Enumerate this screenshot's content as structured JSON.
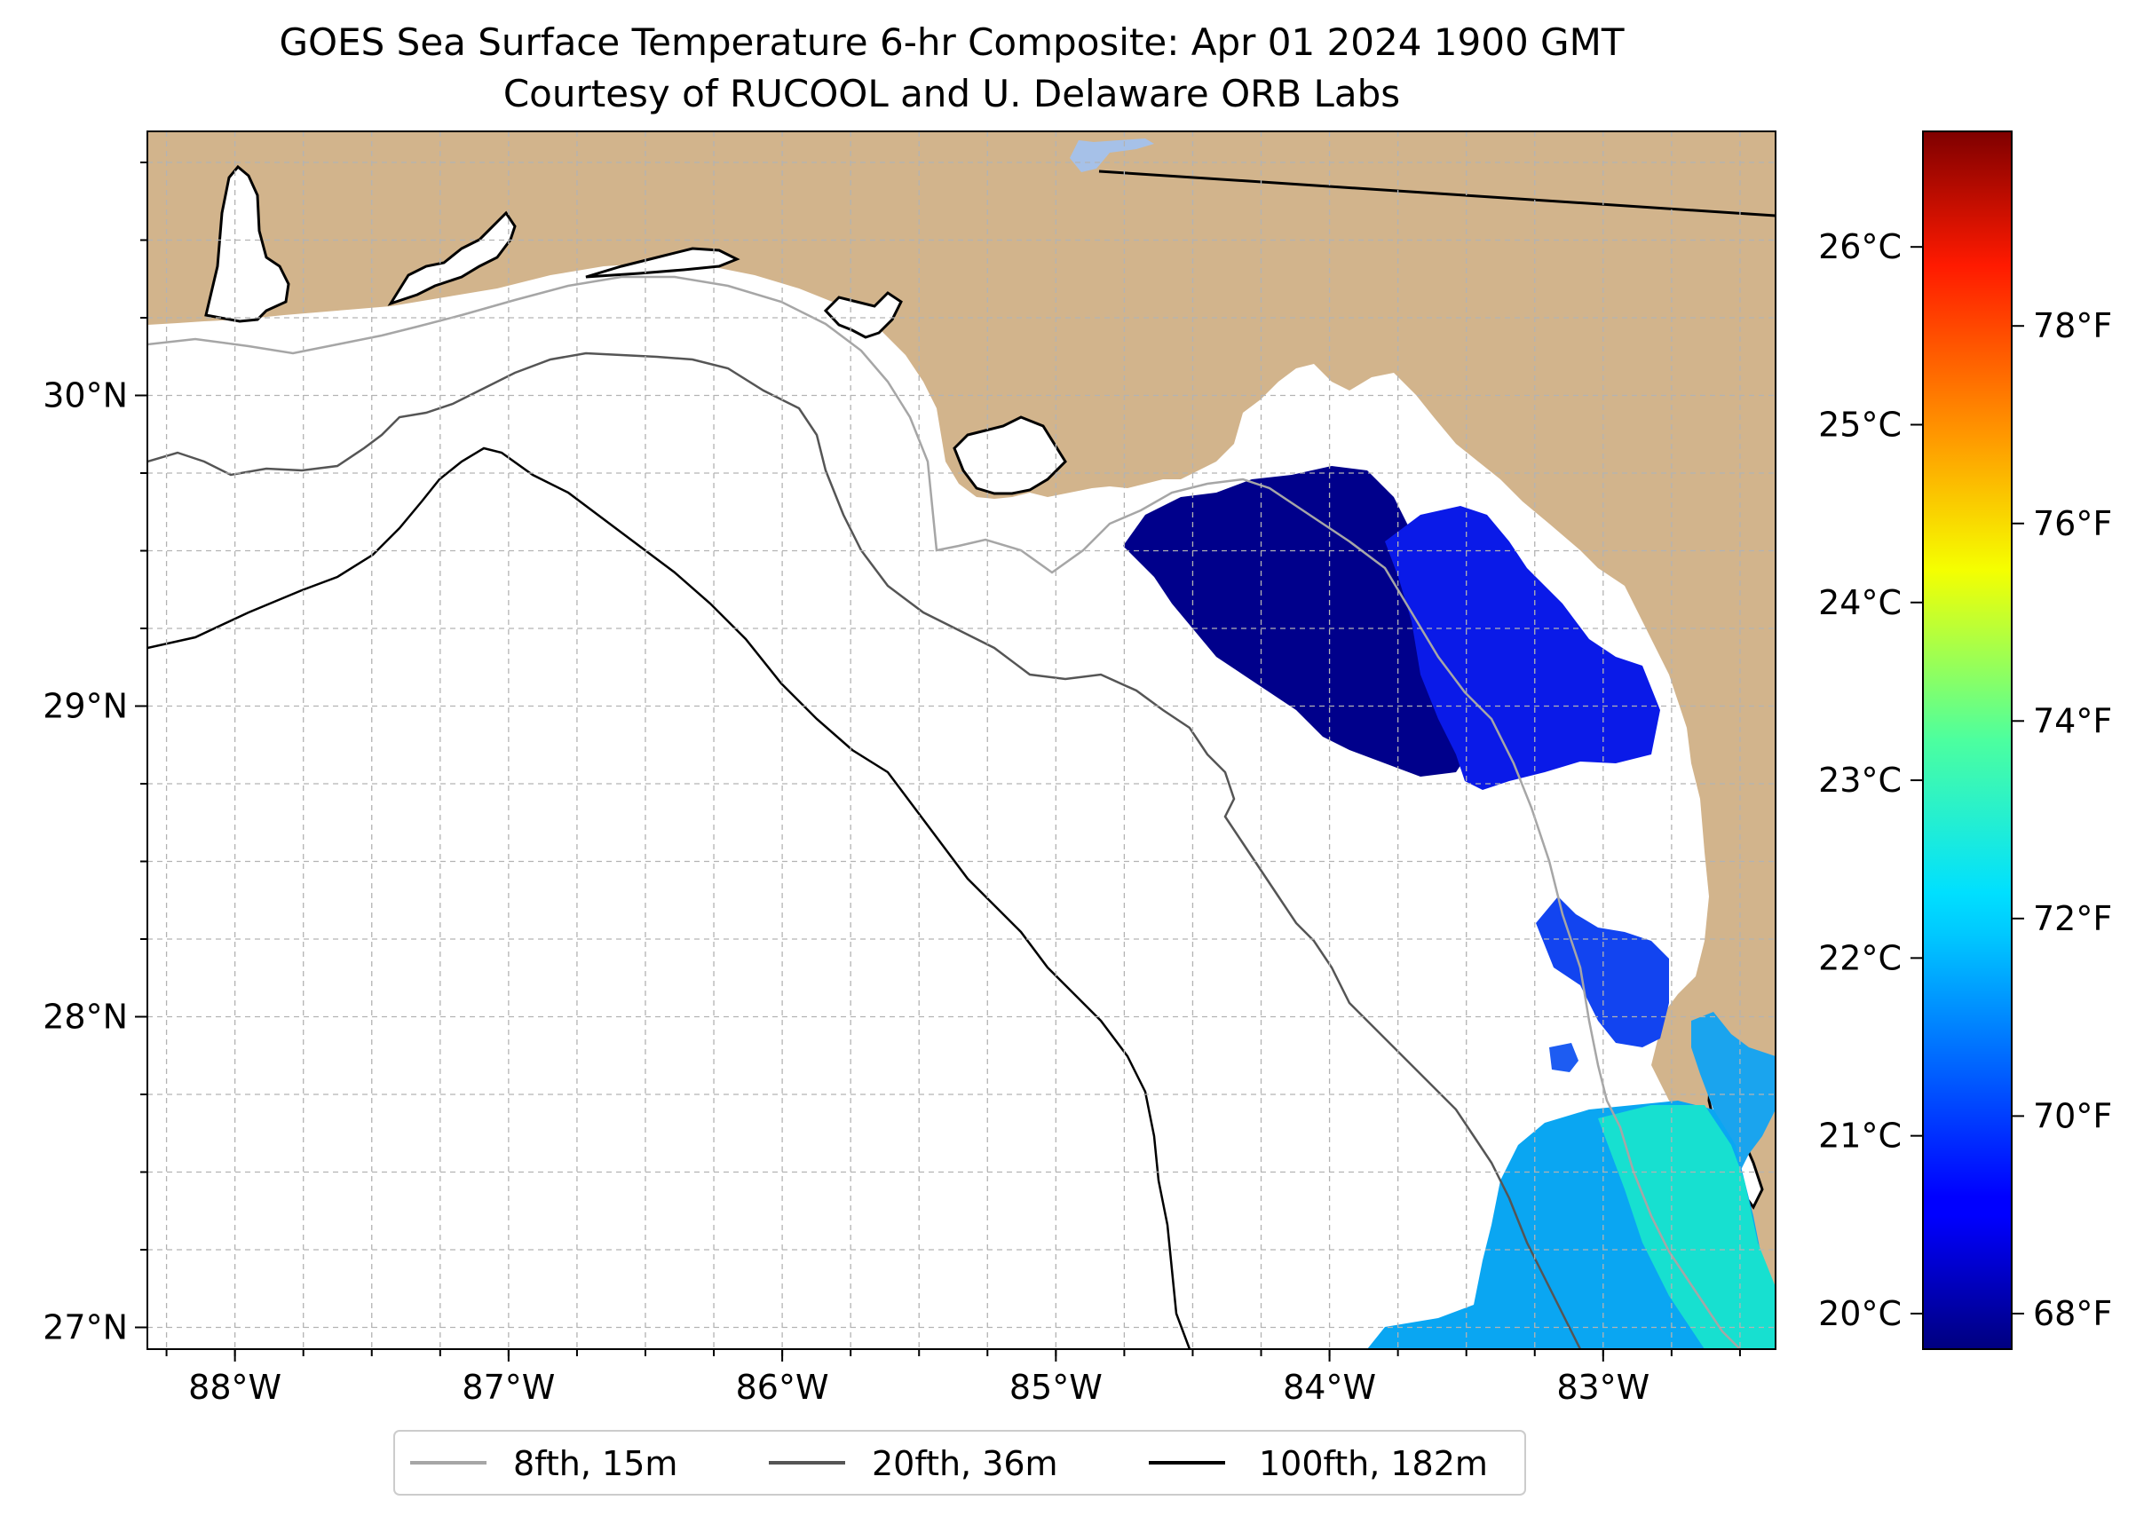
{
  "title": {
    "line1": "GOES Sea Surface Temperature 6-hr Composite: Apr 01 2024 1900 GMT",
    "line2": "Courtesy of RUCOOL and U. Delaware ORB Labs"
  },
  "map": {
    "extent": {
      "lon_min": -88.32,
      "lon_max": -82.37,
      "lat_min": 26.93,
      "lat_max": 30.85
    },
    "lon_ticks": [
      {
        "value": -88,
        "label": "88°W"
      },
      {
        "value": -87,
        "label": "87°W"
      },
      {
        "value": -86,
        "label": "86°W"
      },
      {
        "value": -85,
        "label": "85°W"
      },
      {
        "value": -84,
        "label": "84°W"
      },
      {
        "value": -83,
        "label": "83°W"
      }
    ],
    "lat_ticks": [
      {
        "value": 30,
        "label": "30°N"
      },
      {
        "value": 29,
        "label": "29°N"
      },
      {
        "value": 28,
        "label": "28°N"
      },
      {
        "value": 27,
        "label": "27°N"
      }
    ],
    "gridlines": true,
    "grid_step_degrees": 0.25,
    "land_color": "#d2b48c",
    "ocean_color": "#ffffff",
    "coastline_color": "#000000",
    "lake_color": "#a6c1e8"
  },
  "legend": {
    "placement": "bottom-center",
    "items": [
      {
        "label": "8fth, 15m",
        "color": "#a6a6a6"
      },
      {
        "label": "20fth, 36m",
        "color": "#555555"
      },
      {
        "label": "100fth, 182m",
        "color": "#000000"
      }
    ]
  },
  "colorbar": {
    "colormap": "jet",
    "min_c": 19.8,
    "max_c": 26.65,
    "celsius_ticks": [
      {
        "value": 20,
        "label": "20°C"
      },
      {
        "value": 21,
        "label": "21°C"
      },
      {
        "value": 22,
        "label": "22°C"
      },
      {
        "value": 23,
        "label": "23°C"
      },
      {
        "value": 24,
        "label": "24°C"
      },
      {
        "value": 25,
        "label": "25°C"
      },
      {
        "value": 26,
        "label": "26°C"
      }
    ],
    "fahrenheit_ticks": [
      {
        "value": 68,
        "label": "68°F"
      },
      {
        "value": 70,
        "label": "70°F"
      },
      {
        "value": 72,
        "label": "72°F"
      },
      {
        "value": 74,
        "label": "74°F"
      },
      {
        "value": 76,
        "label": "76°F"
      },
      {
        "value": 78,
        "label": "78°F"
      }
    ]
  }
}
